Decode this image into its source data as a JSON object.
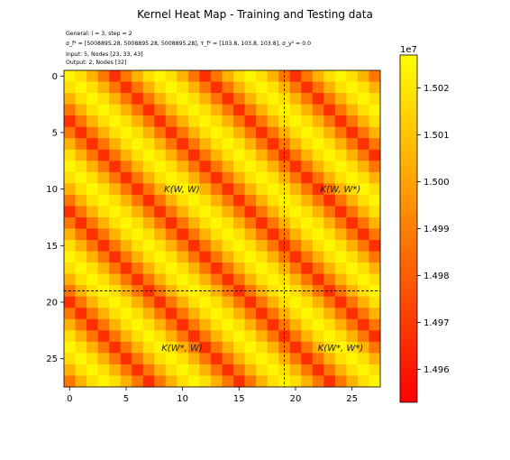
{
  "chart_data": {
    "type": "heatmap",
    "title": "Kernel Heat Map - Training and Testing data",
    "annotation_lines": [
      "General: l = 3, step = 2",
      "σ_f² = [5008895.28, 5008895.28, 5008895.28], τ_f² = [103.8, 103.8, 103.8], σ_y² = 0.0",
      "Input: 5, Nodes [23, 33, 43]",
      "Output: 2, Nodes [32]"
    ],
    "region_labels": [
      "K(W, W)",
      "K(W, W*)",
      "K(W*, W)",
      "K(W*, W*)"
    ],
    "matrix_size": 28,
    "split_index": 20,
    "x_ticks": [
      0,
      5,
      10,
      15,
      20,
      25
    ],
    "y_ticks": [
      0,
      5,
      10,
      15,
      20,
      25
    ],
    "colormap": "autumn_r",
    "colorbar": {
      "scale_label": "1e7",
      "min": 14953000,
      "max": 15027000,
      "ticks": [
        1.496,
        1.497,
        1.498,
        1.499,
        1.5,
        1.501,
        1.502
      ],
      "tick_labels": [
        "1.496",
        "1.497",
        "1.498",
        "1.499",
        "1.500",
        "1.501",
        "1.502"
      ]
    },
    "period": 8,
    "pattern_values": [
      15024500,
      15018000,
      15005000,
      14987000,
      14967000,
      14987000,
      15005000,
      15018000
    ],
    "grid": false
  }
}
